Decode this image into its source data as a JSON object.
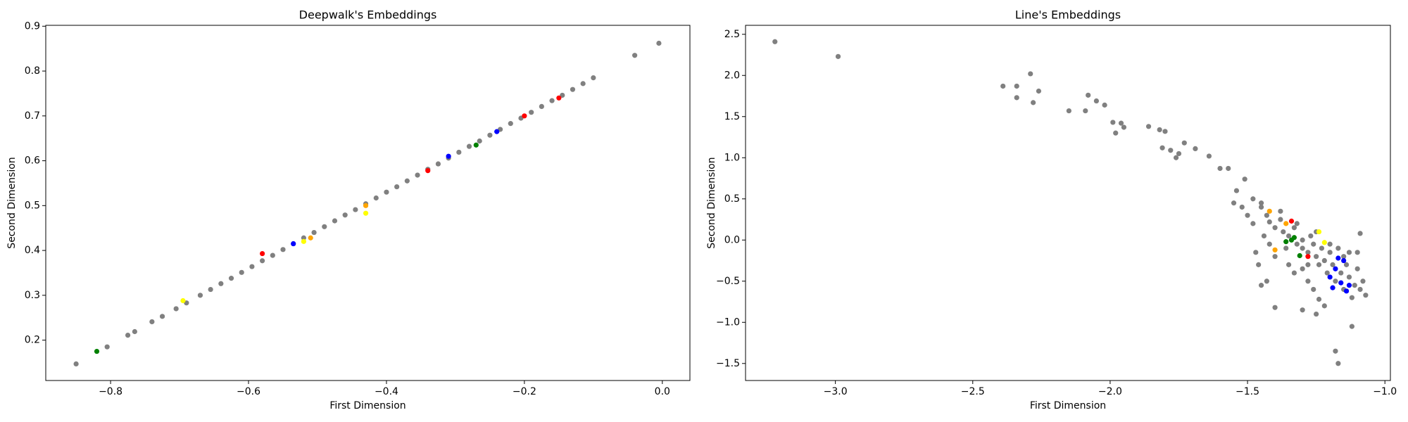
{
  "chart_data": [
    {
      "type": "scatter",
      "title": "Deepwalk's Embeddings",
      "xlabel": "First Dimension",
      "ylabel": "Second Dimension",
      "xlim": [
        -0.894,
        0.04
      ],
      "ylim": [
        0.11,
        0.902
      ],
      "xticks": [
        {
          "value": -0.8,
          "label": "−0.8"
        },
        {
          "value": -0.6,
          "label": "−0.6"
        },
        {
          "value": -0.4,
          "label": "−0.4"
        },
        {
          "value": -0.2,
          "label": "−0.2"
        },
        {
          "value": 0,
          "label": "0.0"
        }
      ],
      "yticks": [
        0.2,
        0.3,
        0.4,
        0.5,
        0.6,
        0.7,
        0.8,
        0.9
      ],
      "series": [
        {
          "color": "#808080",
          "x": [
            -0.85,
            -0.805,
            -0.775,
            -0.765,
            -0.74,
            -0.725,
            -0.705,
            -0.69,
            -0.67,
            -0.655,
            -0.64,
            -0.625,
            -0.61,
            -0.595,
            -0.58,
            -0.565,
            -0.55,
            -0.535,
            -0.52,
            -0.505,
            -0.49,
            -0.475,
            -0.46,
            -0.445,
            -0.43,
            -0.415,
            -0.4,
            -0.385,
            -0.37,
            -0.355,
            -0.34,
            -0.325,
            -0.31,
            -0.295,
            -0.28,
            -0.265,
            -0.25,
            -0.235,
            -0.22,
            -0.205,
            -0.19,
            -0.175,
            -0.16,
            -0.145,
            -0.13,
            -0.115,
            -0.1,
            -0.04,
            -0.005
          ],
          "y": [
            0.147,
            0.185,
            0.211,
            0.219,
            0.241,
            0.253,
            0.27,
            0.283,
            0.3,
            0.313,
            0.326,
            0.338,
            0.351,
            0.364,
            0.377,
            0.389,
            0.402,
            0.415,
            0.428,
            0.44,
            0.453,
            0.466,
            0.479,
            0.491,
            0.504,
            0.517,
            0.53,
            0.542,
            0.555,
            0.568,
            0.581,
            0.593,
            0.606,
            0.619,
            0.632,
            0.644,
            0.657,
            0.67,
            0.683,
            0.695,
            0.708,
            0.721,
            0.734,
            0.746,
            0.759,
            0.772,
            0.785,
            0.835,
            0.862
          ]
        },
        {
          "color": "#ff0000",
          "x": [
            -0.58,
            -0.2,
            -0.15,
            -0.34
          ],
          "y": [
            0.393,
            0.7,
            0.74,
            0.578
          ]
        },
        {
          "color": "#0000ff",
          "x": [
            -0.24,
            -0.31,
            -0.535
          ],
          "y": [
            0.665,
            0.61,
            0.415
          ]
        },
        {
          "color": "#008000",
          "x": [
            -0.82,
            -0.27
          ],
          "y": [
            0.175,
            0.635
          ]
        },
        {
          "color": "#ffff00",
          "x": [
            -0.695,
            -0.43,
            -0.52
          ],
          "y": [
            0.288,
            0.483,
            0.42
          ]
        },
        {
          "color": "#ffa500",
          "x": [
            -0.51,
            -0.43
          ],
          "y": [
            0.428,
            0.5
          ]
        }
      ]
    },
    {
      "type": "scatter",
      "title": "Line's Embeddings",
      "xlabel": "First Dimension",
      "ylabel": "Second Dimension",
      "xlim": [
        -3.327,
        -0.98
      ],
      "ylim": [
        -1.707,
        2.609
      ],
      "xticks": [
        {
          "value": -3,
          "label": "−3.0"
        },
        {
          "value": -2.5,
          "label": "−2.5"
        },
        {
          "value": -2,
          "label": "−2.0"
        },
        {
          "value": -1.5,
          "label": "−1.5"
        },
        {
          "value": -1,
          "label": "−1.0"
        }
      ],
      "yticks": [
        {
          "value": -1.5,
          "label": "−1.5"
        },
        {
          "value": -1,
          "label": "−1.0"
        },
        {
          "value": -0.5,
          "label": "−0.5"
        },
        {
          "value": 0,
          "label": "0.0"
        },
        0.5,
        {
          "value": 1,
          "label": "1.0"
        },
        1.5,
        {
          "value": 2,
          "label": "2.0"
        },
        2.5
      ],
      "series": [
        {
          "color": "#808080",
          "x": [
            -3.22,
            -2.99,
            -2.29,
            -2.39,
            -2.34,
            -2.34,
            -2.26,
            -2.28,
            -2.15,
            -2.08,
            -2.05,
            -2.02,
            -2.09,
            -1.99,
            -1.96,
            -1.98,
            -1.95,
            -1.86,
            -1.82,
            -1.8,
            -1.81,
            -1.78,
            -1.75,
            -1.76,
            -1.73,
            -1.69,
            -1.64,
            -1.6,
            -1.57,
            -1.54,
            -1.51,
            -1.48,
            -1.45,
            -1.45,
            -1.43,
            -1.42,
            -1.4,
            -1.38,
            -1.37,
            -1.35,
            -1.33,
            -1.32,
            -1.3,
            -1.3,
            -1.28,
            -1.27,
            -1.26,
            -1.25,
            -1.24,
            -1.23,
            -1.22,
            -1.21,
            -1.2,
            -1.19,
            -1.18,
            -1.17,
            -1.16,
            -1.15,
            -1.14,
            -1.13,
            -1.12,
            -1.11,
            -1.1,
            -1.09,
            -1.08,
            -1.07,
            -1.1,
            -1.09,
            -1.35,
            -1.33,
            -1.3,
            -1.28,
            -1.26,
            -1.24,
            -1.22,
            -1.28,
            -1.36,
            -1.4,
            -1.42,
            -1.44,
            -1.47,
            -1.46,
            -1.43,
            -1.45,
            -1.4,
            -1.3,
            -1.25,
            -1.12,
            -1.18,
            -1.17,
            -1.2,
            -1.25,
            -1.15,
            -1.13,
            -1.32,
            -1.38,
            -1.5,
            -1.48,
            -1.52,
            -1.55
          ],
          "y": [
            2.41,
            2.23,
            2.02,
            1.87,
            1.87,
            1.73,
            1.81,
            1.67,
            1.57,
            1.76,
            1.69,
            1.64,
            1.57,
            1.43,
            1.42,
            1.3,
            1.37,
            1.38,
            1.34,
            1.32,
            1.12,
            1.09,
            1.05,
            1.0,
            1.18,
            1.11,
            1.02,
            0.87,
            0.87,
            0.6,
            0.74,
            0.5,
            0.45,
            0.4,
            0.3,
            0.22,
            0.15,
            0.25,
            0.1,
            0.05,
            0.15,
            -0.05,
            0.0,
            -0.1,
            -0.15,
            0.05,
            -0.05,
            -0.2,
            -0.3,
            -0.1,
            -0.25,
            -0.4,
            -0.15,
            -0.3,
            -0.5,
            -0.1,
            -0.4,
            -0.6,
            -0.3,
            -0.45,
            -0.7,
            -0.55,
            -0.35,
            -0.6,
            -0.5,
            -0.67,
            -0.15,
            0.08,
            -0.3,
            -0.4,
            -0.35,
            -0.5,
            -0.6,
            -0.72,
            -0.8,
            -0.3,
            -0.1,
            -0.2,
            -0.05,
            0.05,
            -0.15,
            -0.3,
            -0.5,
            -0.55,
            -0.82,
            -0.85,
            -0.9,
            -1.05,
            -1.35,
            -1.5,
            -0.05,
            0.1,
            -0.2,
            -0.15,
            0.2,
            0.35,
            0.3,
            0.2,
            0.4,
            0.45
          ]
        },
        {
          "color": "#0000ff",
          "x": [
            -1.17,
            -1.15,
            -1.18,
            -1.2,
            -1.16,
            -1.13,
            -1.14,
            -1.19
          ],
          "y": [
            -0.22,
            -0.25,
            -0.35,
            -0.45,
            -0.52,
            -0.55,
            -0.62,
            -0.58
          ]
        },
        {
          "color": "#008000",
          "x": [
            -1.36,
            -1.34,
            -1.31,
            -1.33
          ],
          "y": [
            -0.02,
            0.0,
            -0.19,
            0.03
          ]
        },
        {
          "color": "#ffff00",
          "x": [
            -1.22,
            -1.24
          ],
          "y": [
            -0.03,
            0.1
          ]
        },
        {
          "color": "#ffa500",
          "x": [
            -1.42,
            -1.36,
            -1.4
          ],
          "y": [
            0.35,
            0.2,
            -0.12
          ]
        },
        {
          "color": "#ff0000",
          "x": [
            -1.34,
            -1.28
          ],
          "y": [
            0.23,
            -0.2
          ]
        }
      ]
    }
  ]
}
